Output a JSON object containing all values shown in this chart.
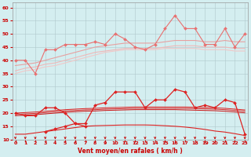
{
  "x": [
    0,
    1,
    2,
    3,
    4,
    5,
    6,
    7,
    8,
    9,
    10,
    11,
    12,
    13,
    14,
    15,
    16,
    17,
    18,
    19,
    20,
    21,
    22,
    23
  ],
  "series": [
    {
      "name": "rafales_marked",
      "color": "#e87070",
      "linewidth": 0.8,
      "marker": "D",
      "markersize": 2.0,
      "y": [
        40,
        40,
        35,
        44,
        44,
        46,
        46,
        46,
        47,
        46,
        50,
        48,
        45,
        44,
        46,
        52,
        57,
        52,
        52,
        46,
        46,
        52,
        45,
        50
      ]
    },
    {
      "name": "rafales_smooth1",
      "color": "#e8a0a0",
      "linewidth": 0.8,
      "marker": null,
      "markersize": 0,
      "y": [
        38,
        38.5,
        39,
        40,
        41,
        42,
        43,
        44,
        45,
        45.5,
        46,
        46.5,
        46.5,
        46.5,
        46.5,
        47,
        47.5,
        47.5,
        47.5,
        47,
        47,
        47.5,
        47,
        47
      ]
    },
    {
      "name": "rafales_smooth2",
      "color": "#f0b8b8",
      "linewidth": 0.8,
      "marker": null,
      "markersize": 0,
      "y": [
        36,
        37,
        37.5,
        38.5,
        39,
        40,
        41,
        42,
        43,
        43.5,
        44,
        44.5,
        44.5,
        44.5,
        44.5,
        45,
        45.5,
        45.5,
        45.5,
        45,
        45,
        45,
        44.5,
        44.5
      ]
    },
    {
      "name": "rafales_smooth3",
      "color": "#f0c8c8",
      "linewidth": 0.8,
      "marker": null,
      "markersize": 0,
      "y": [
        35,
        36,
        36.5,
        37.5,
        38,
        39,
        40,
        41,
        42,
        43,
        43.5,
        44,
        44,
        44,
        44,
        44.5,
        44.5,
        44.5,
        44.5,
        44,
        44,
        44,
        43.5,
        43.5
      ]
    },
    {
      "name": "moyen_marked",
      "color": "#dd2222",
      "linewidth": 0.9,
      "marker": "D",
      "markersize": 2.0,
      "y": [
        20,
        19,
        19,
        22,
        22,
        20,
        16,
        16,
        23,
        24,
        28,
        28,
        28,
        22,
        25,
        25,
        29,
        28,
        22,
        23,
        22,
        25,
        24,
        12
      ]
    },
    {
      "name": "moyen_smooth1",
      "color": "#dd2222",
      "linewidth": 0.7,
      "marker": null,
      "markersize": 0,
      "y": [
        20,
        20.2,
        20.4,
        20.7,
        21,
        21.3,
        21.5,
        21.7,
        21.8,
        22,
        22.1,
        22.2,
        22.3,
        22.3,
        22.3,
        22.3,
        22.3,
        22.3,
        22.2,
        22.1,
        22,
        21.8,
        21.5,
        21.2
      ]
    },
    {
      "name": "moyen_smooth2",
      "color": "#dd2222",
      "linewidth": 0.7,
      "marker": null,
      "markersize": 0,
      "y": [
        19.5,
        19.7,
        19.9,
        20.2,
        20.5,
        20.8,
        21,
        21.2,
        21.3,
        21.5,
        21.6,
        21.7,
        21.8,
        21.8,
        21.8,
        21.8,
        21.8,
        21.8,
        21.7,
        21.6,
        21.5,
        21.3,
        21,
        20.7
      ]
    },
    {
      "name": "moyen_smooth3",
      "color": "#cc1111",
      "linewidth": 0.7,
      "marker": null,
      "markersize": 0,
      "y": [
        19,
        19.2,
        19.4,
        19.7,
        20,
        20.3,
        20.5,
        20.7,
        20.8,
        21,
        21.1,
        21.2,
        21.3,
        21.3,
        21.3,
        21.3,
        21.3,
        21.2,
        21.1,
        21,
        20.9,
        20.7,
        20.4,
        20.1
      ]
    },
    {
      "name": "min_marked",
      "color": "#dd2222",
      "linewidth": 0.9,
      "marker": "D",
      "markersize": 2.0,
      "y": [
        null,
        null,
        null,
        13,
        14,
        15,
        16,
        15,
        null,
        null,
        null,
        null,
        null,
        null,
        null,
        null,
        null,
        null,
        null,
        null,
        null,
        null,
        null,
        null
      ]
    },
    {
      "name": "min_smooth",
      "color": "#dd2222",
      "linewidth": 0.8,
      "marker": null,
      "markersize": 0,
      "y": [
        12,
        12,
        12.5,
        13,
        13.5,
        14,
        14.5,
        15,
        15.2,
        15.3,
        15.4,
        15.5,
        15.5,
        15.5,
        15.4,
        15.2,
        15,
        14.7,
        14.3,
        13.8,
        13.2,
        12.8,
        12.2,
        11.5
      ]
    }
  ],
  "ylim": [
    10,
    62
  ],
  "yticks": [
    10,
    15,
    20,
    25,
    30,
    35,
    40,
    45,
    50,
    55,
    60
  ],
  "xlim": [
    -0.3,
    23.3
  ],
  "xticks": [
    0,
    1,
    2,
    3,
    4,
    5,
    6,
    7,
    8,
    9,
    10,
    11,
    12,
    13,
    14,
    15,
    16,
    17,
    18,
    19,
    20,
    21,
    22,
    23
  ],
  "xlabel": "Vent moyen/en rafales ( km/h )",
  "bg_color": "#d4eef0",
  "grid_color": "#b0c8cc",
  "arrow_color": "#cc0000",
  "tick_label_color": "#cc0000",
  "axis_label_color": "#cc0000",
  "figwidth": 3.2,
  "figheight": 2.0,
  "dpi": 100
}
